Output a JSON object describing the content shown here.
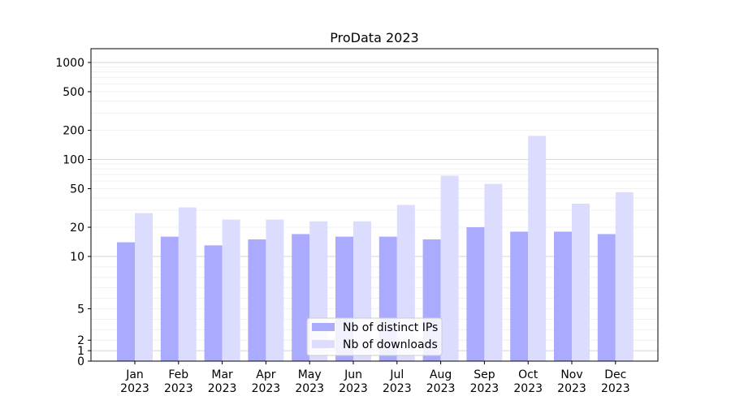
{
  "chart_data": {
    "type": "bar",
    "title": "ProData 2023",
    "xlabel": "",
    "ylabel": "",
    "y_scale": "symlog",
    "ylim": [
      0,
      1200
    ],
    "y_ticks": [
      {
        "value": 0,
        "label": "0"
      },
      {
        "value": 1,
        "label": "1"
      },
      {
        "value": 2,
        "label": "2"
      },
      {
        "value": 5,
        "label": "5"
      },
      {
        "value": 10,
        "label": "10"
      },
      {
        "value": 20,
        "label": "20"
      },
      {
        "value": 50,
        "label": "50"
      },
      {
        "value": 100,
        "label": "100"
      },
      {
        "value": 200,
        "label": "200"
      },
      {
        "value": 500,
        "label": "500"
      },
      {
        "value": 1000,
        "label": "1000"
      }
    ],
    "grid": true,
    "legend_position": "bottom-center",
    "categories": [
      {
        "month": "Jan",
        "year": "2023"
      },
      {
        "month": "Feb",
        "year": "2023"
      },
      {
        "month": "Mar",
        "year": "2023"
      },
      {
        "month": "Apr",
        "year": "2023"
      },
      {
        "month": "May",
        "year": "2023"
      },
      {
        "month": "Jun",
        "year": "2023"
      },
      {
        "month": "Jul",
        "year": "2023"
      },
      {
        "month": "Aug",
        "year": "2023"
      },
      {
        "month": "Sep",
        "year": "2023"
      },
      {
        "month": "Oct",
        "year": "2023"
      },
      {
        "month": "Nov",
        "year": "2023"
      },
      {
        "month": "Dec",
        "year": "2023"
      }
    ],
    "series": [
      {
        "name": "Nb of distinct IPs",
        "color": "#aaaaff",
        "values": [
          14,
          16,
          13,
          15,
          17,
          16,
          16,
          15,
          20,
          18,
          18,
          17
        ]
      },
      {
        "name": "Nb of downloads",
        "color": "#dcdcff",
        "values": [
          28,
          32,
          24,
          24,
          23,
          23,
          34,
          68,
          56,
          175,
          35,
          46
        ]
      }
    ]
  }
}
